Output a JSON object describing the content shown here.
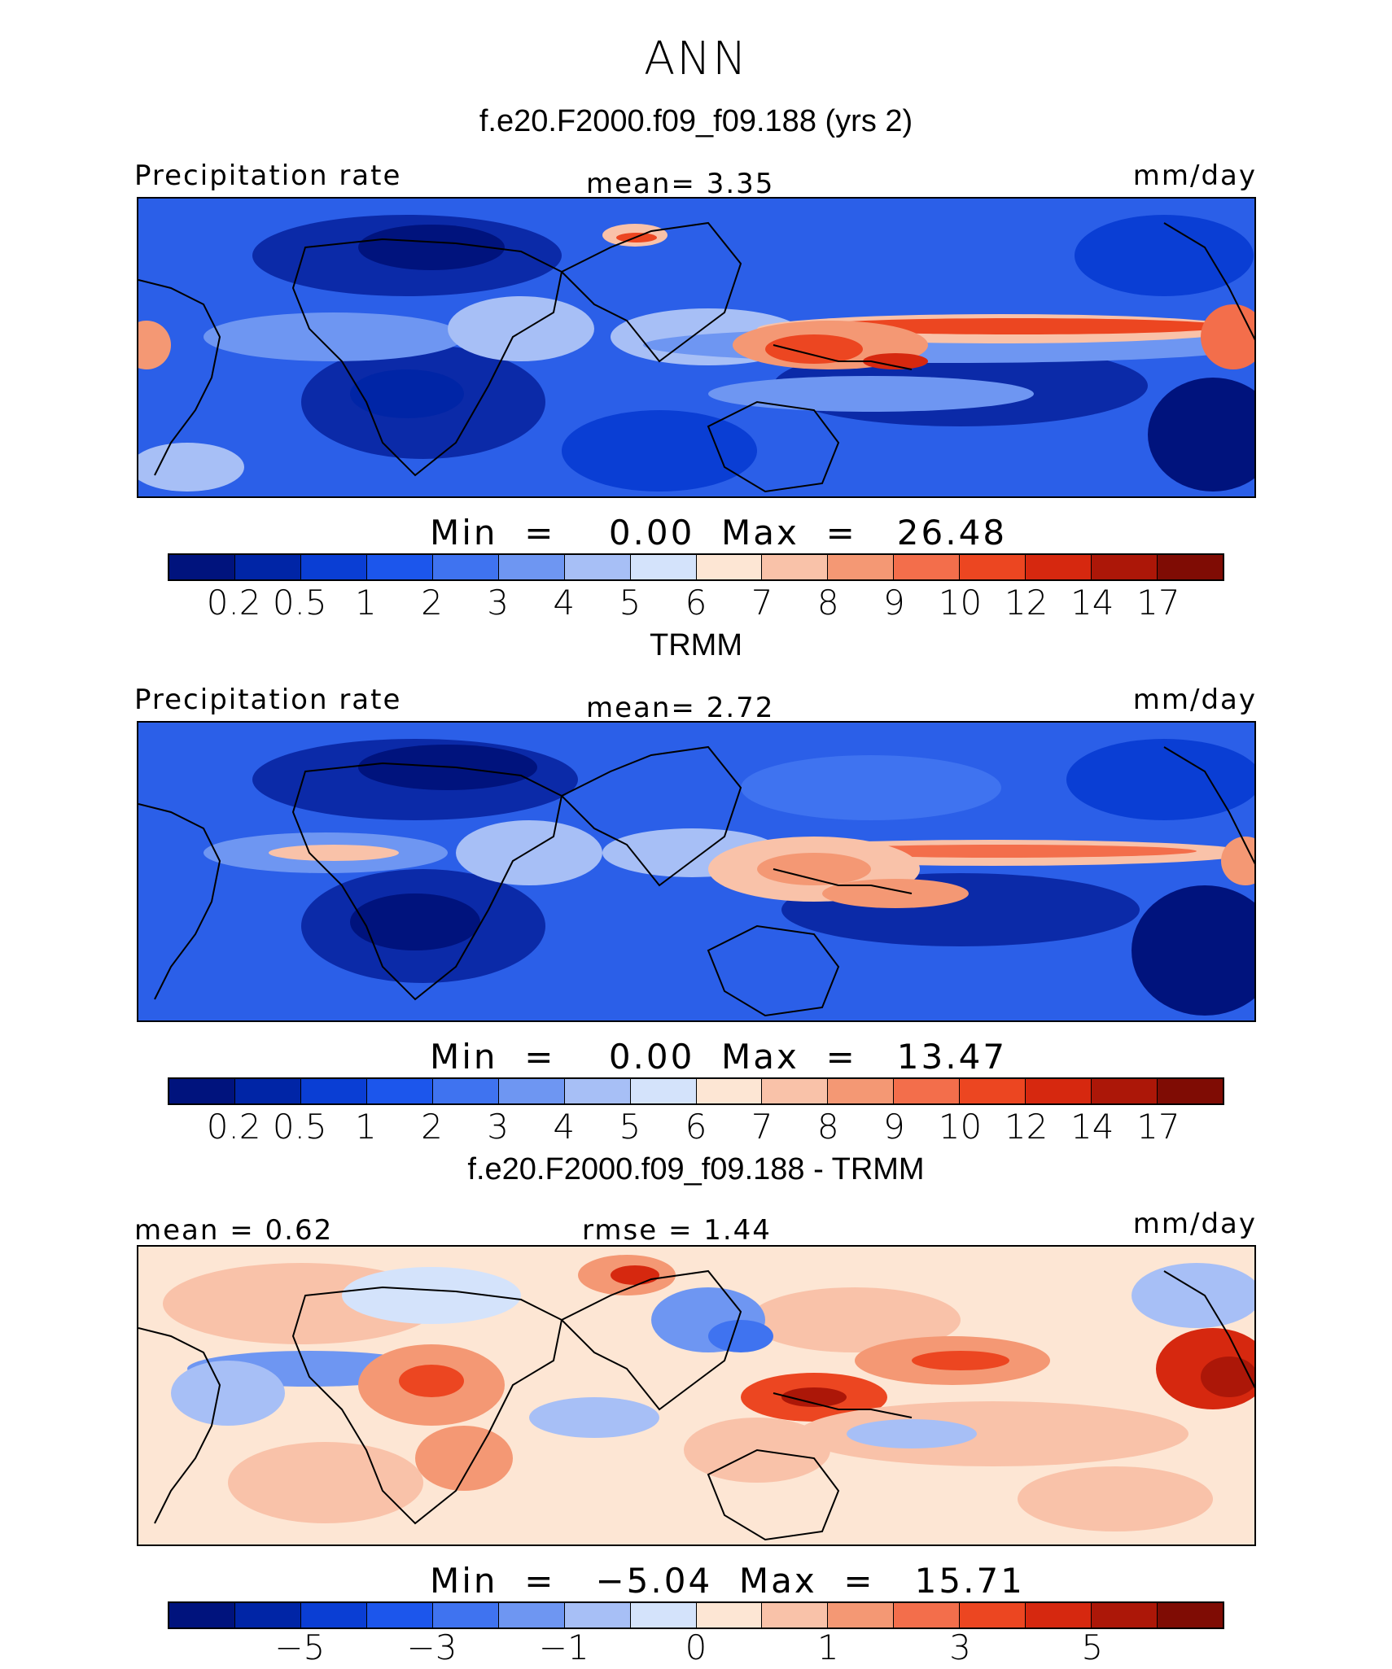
{
  "title": "ANN",
  "palette_abs": [
    "#00137d",
    "#0025a6",
    "#0a3ed4",
    "#1c56ec",
    "#3f73f0",
    "#6e96f2",
    "#a7bff6",
    "#d4e3fb",
    "#fde6d4",
    "#f9c2a9",
    "#f49874",
    "#f36e4b",
    "#ec4621",
    "#d6280f",
    "#ac1708",
    "#7f0c04"
  ],
  "palette_diff": [
    "#00137d",
    "#0025a6",
    "#0a3ed4",
    "#1c56ec",
    "#3f73f0",
    "#6e96f2",
    "#a7bff6",
    "#d4e3fb",
    "#fde6d4",
    "#f9c2a9",
    "#f49874",
    "#f36e4b",
    "#ec4621",
    "#d6280f",
    "#ac1708",
    "#7f0c04"
  ],
  "abs_levels": [
    "0.2",
    "0.5",
    "1",
    "2",
    "3",
    "4",
    "5",
    "6",
    "7",
    "8",
    "9",
    "10",
    "12",
    "14",
    "17"
  ],
  "diff_levels": [
    "−5",
    "−3",
    "−1",
    "0",
    "1",
    "3",
    "5"
  ],
  "panels": [
    {
      "subtitle": "f.e20.F2000.f09_f09.188 (yrs 2)",
      "left_label": "Precipitation rate",
      "center_label": "mean=   3.35",
      "right_label": "mm/day",
      "stats": "Min  =    0.00  Max  =   26.48"
    },
    {
      "subtitle": "TRMM",
      "left_label": "Precipitation rate",
      "center_label": "mean=   2.72",
      "right_label": "mm/day",
      "stats": "Min  =    0.00  Max  =   13.47"
    },
    {
      "subtitle": "f.e20.F2000.f09_f09.188 - TRMM",
      "left_label": "mean =   0.62",
      "center_label": "rmse =   1.44",
      "right_label": "mm/day",
      "stats": "Min  =   −5.04  Max  =   15.71"
    }
  ]
}
